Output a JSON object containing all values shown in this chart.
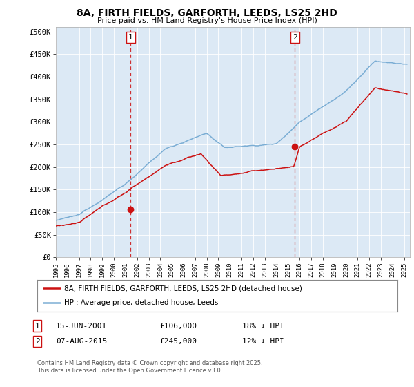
{
  "title": "8A, FIRTH FIELDS, GARFORTH, LEEDS, LS25 2HD",
  "subtitle": "Price paid vs. HM Land Registry's House Price Index (HPI)",
  "ylabel_ticks": [
    "£0",
    "£50K",
    "£100K",
    "£150K",
    "£200K",
    "£250K",
    "£300K",
    "£350K",
    "£400K",
    "£450K",
    "£500K"
  ],
  "ytick_vals": [
    0,
    50000,
    100000,
    150000,
    200000,
    250000,
    300000,
    350000,
    400000,
    450000,
    500000
  ],
  "ylim": [
    0,
    510000
  ],
  "xlim_start": 1995.0,
  "xlim_end": 2025.5,
  "hpi_color": "#7aadd4",
  "price_color": "#cc1111",
  "marker1_x": 2001.45,
  "marker1_y": 106000,
  "marker2_x": 2015.6,
  "marker2_y": 245000,
  "marker_color": "#cc1111",
  "legend_label1": "8A, FIRTH FIELDS, GARFORTH, LEEDS, LS25 2HD (detached house)",
  "legend_label2": "HPI: Average price, detached house, Leeds",
  "annotation1_label": "1",
  "annotation2_label": "2",
  "copyright": "Contains HM Land Registry data © Crown copyright and database right 2025.\nThis data is licensed under the Open Government Licence v3.0.",
  "bg_color": "#ffffff",
  "plot_bg_color": "#dce9f5",
  "grid_color": "#ffffff",
  "dashed_line_color": "#cc1111",
  "title_fontsize": 10,
  "subtitle_fontsize": 8
}
